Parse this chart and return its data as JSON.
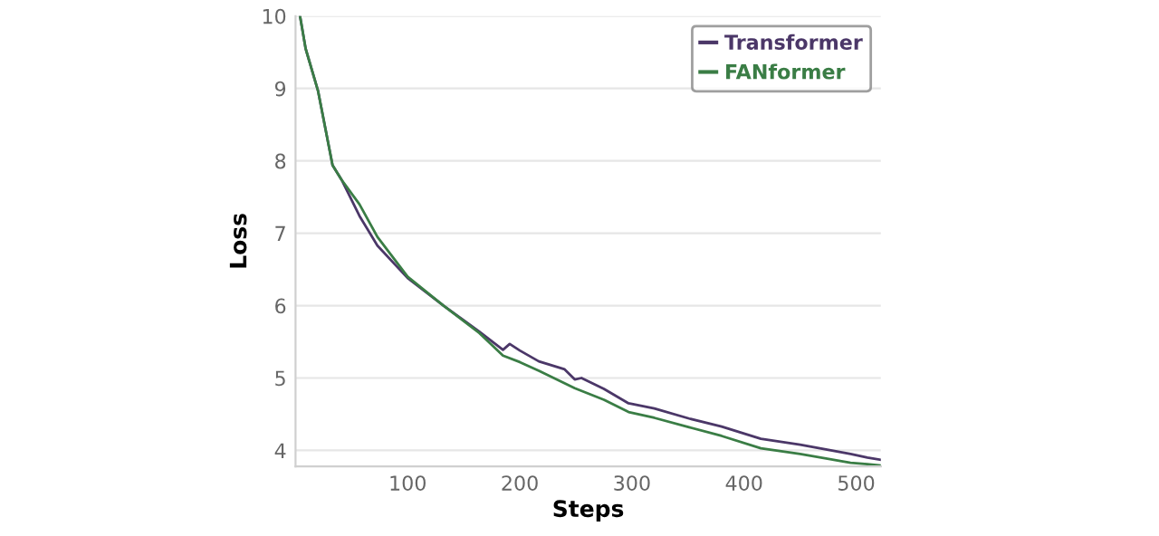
{
  "chart_data": {
    "type": "line",
    "xlabel": "Steps",
    "ylabel": "Loss",
    "xlim": [
      0,
      522
    ],
    "ylim": [
      3.78,
      10
    ],
    "xticks": [
      100,
      200,
      300,
      400,
      500
    ],
    "yticks": [
      4,
      5,
      6,
      7,
      8,
      9,
      10
    ],
    "grid": "y",
    "legend": "top right",
    "line_style": "solid",
    "marker": "none",
    "series": [
      {
        "name": "Transformer",
        "color": "#4b3768",
        "x": [
          4,
          9,
          20,
          33,
          41,
          57,
          73,
          100,
          132,
          164,
          185,
          191,
          200,
          217,
          240,
          249,
          255,
          275,
          297,
          320,
          351,
          380,
          415,
          450,
          495,
          510,
          522
        ],
        "values": [
          10,
          9.55,
          8.97,
          7.94,
          7.74,
          7.24,
          6.83,
          6.38,
          6.0,
          5.64,
          5.39,
          5.47,
          5.38,
          5.23,
          5.12,
          4.98,
          5.0,
          4.85,
          4.65,
          4.58,
          4.44,
          4.33,
          4.16,
          4.08,
          3.95,
          3.9,
          3.87
        ]
      },
      {
        "name": "FANformer",
        "color": "#3a7d45",
        "x": [
          4,
          9,
          20,
          33,
          41,
          57,
          73,
          100,
          132,
          164,
          185,
          200,
          217,
          249,
          275,
          297,
          320,
          351,
          380,
          415,
          450,
          495,
          510,
          522
        ],
        "values": [
          10,
          9.55,
          8.97,
          7.94,
          7.74,
          7.4,
          6.95,
          6.4,
          6.0,
          5.62,
          5.31,
          5.22,
          5.1,
          4.86,
          4.7,
          4.53,
          4.45,
          4.32,
          4.2,
          4.03,
          3.95,
          3.83,
          3.81,
          3.79
        ]
      }
    ]
  }
}
